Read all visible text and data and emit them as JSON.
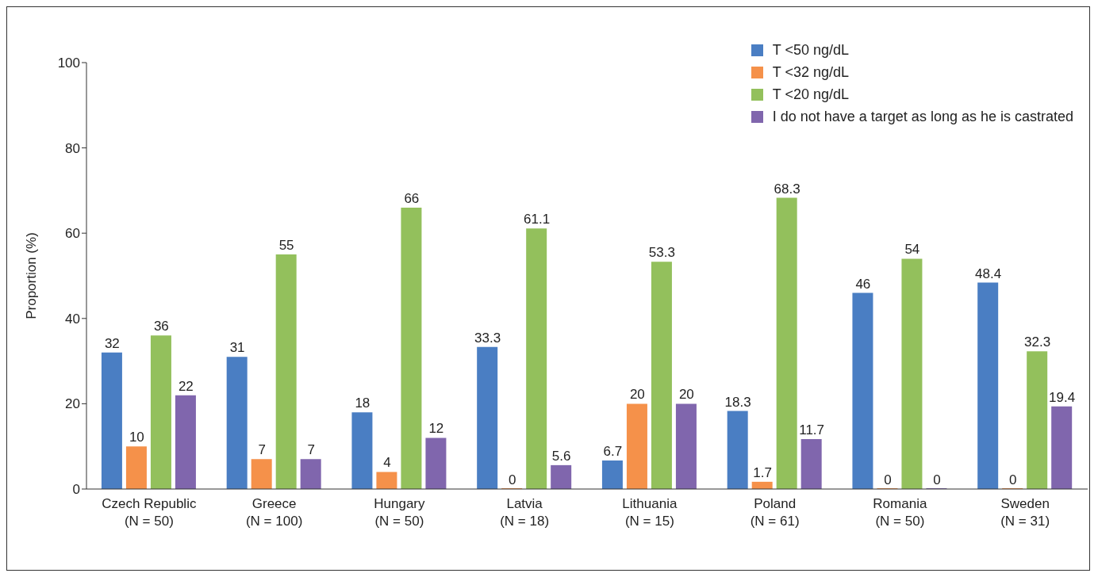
{
  "chart_data": {
    "type": "bar",
    "ylabel": "Proportion (%)",
    "categories": [
      "Czech Republic\n(N = 50)",
      "Greece\n(N = 100)",
      "Hungary\n(N = 50)",
      "Latvia\n(N = 18)",
      "Lithuania\n(N = 15)",
      "Poland\n(N = 61)",
      "Romania\n(N = 50)",
      "Sweden\n(N = 31)"
    ],
    "series": [
      {
        "name": "T <50 ng/dL",
        "color": "#4a7ec3",
        "values": [
          32,
          31,
          18,
          33.3,
          6.7,
          18.3,
          46,
          48.4
        ]
      },
      {
        "name": "T <32 ng/dL",
        "color": "#f5914a",
        "values": [
          10,
          7,
          4,
          0,
          20,
          1.7,
          0,
          0
        ]
      },
      {
        "name": "T <20 ng/dL",
        "color": "#93c05c",
        "values": [
          36,
          55,
          66,
          61.1,
          53.3,
          68.3,
          54,
          32.3
        ]
      },
      {
        "name": "I do not have a target as long as he is castrated",
        "color": "#8066ad",
        "values": [
          22,
          7,
          12,
          5.6,
          20,
          11.7,
          0,
          19.4
        ]
      }
    ],
    "ylim": [
      0,
      100
    ],
    "yticks": [
      0,
      20,
      40,
      60,
      80,
      100
    ],
    "legend": "top right",
    "data_labels": true
  }
}
